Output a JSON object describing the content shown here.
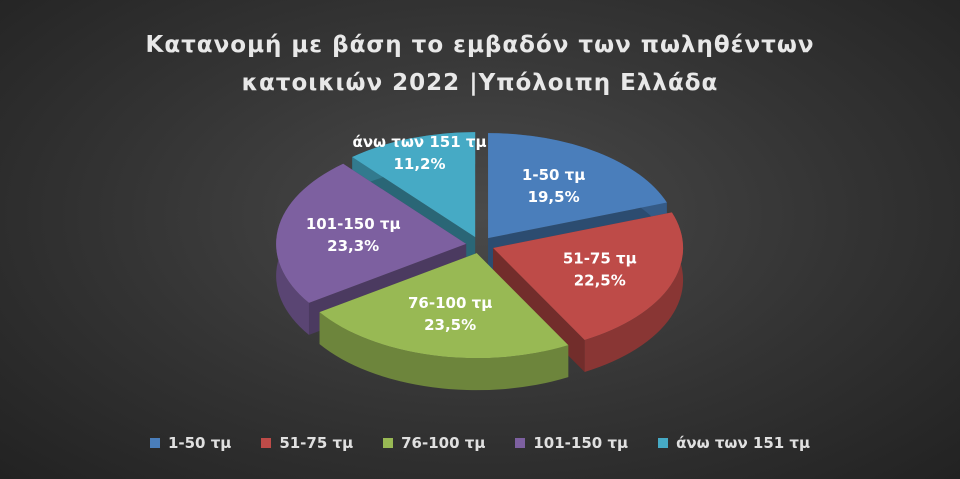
{
  "chart_data": {
    "type": "pie",
    "title": "Κατανομή με βάση το εμβαδόν των πωληθέντων κατοικιών 2022 |Υπόλοιπη Ελλάδα",
    "categories": [
      "1-50 τμ",
      "51-75 τμ",
      "76-100 τμ",
      "101-150 τμ",
      "άνω των 151 τμ"
    ],
    "values": [
      19.5,
      22.5,
      23.5,
      23.3,
      11.2
    ],
    "value_labels": [
      "19,5%",
      "22,5%",
      "23,5%",
      "23,3%",
      "11,2%"
    ],
    "colors": [
      "#4a7ebb",
      "#be4b48",
      "#98b954",
      "#7d60a0",
      "#46aac5"
    ],
    "legend": "bottom"
  }
}
